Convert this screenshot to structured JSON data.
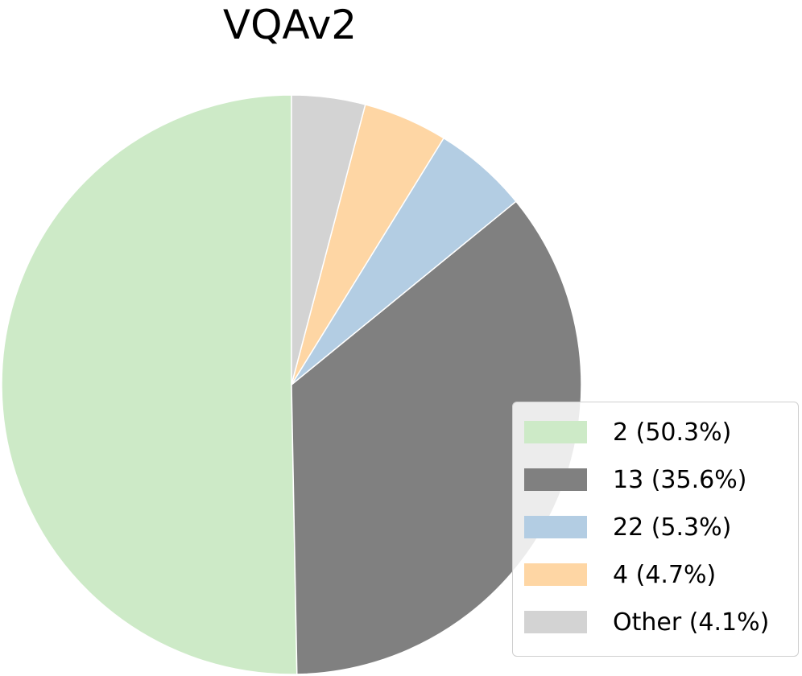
{
  "chart_data": {
    "type": "pie",
    "title": "VQAv2",
    "slices": [
      {
        "label": "2 (50.3%)",
        "value": 50.3,
        "color": "#cdeac7"
      },
      {
        "label": "13 (35.6%)",
        "value": 35.6,
        "color": "#808080"
      },
      {
        "label": "22 (5.3%)",
        "value": 5.3,
        "color": "#b3cde3"
      },
      {
        "label": "4 (4.7%)",
        "value": 4.7,
        "color": "#fed6a4"
      },
      {
        "label": "Other (4.1%)",
        "value": 4.1,
        "color": "#d3d3d3"
      }
    ],
    "start_angle": "top",
    "direction": "counterclockwise",
    "legend_position": "lower-right"
  }
}
